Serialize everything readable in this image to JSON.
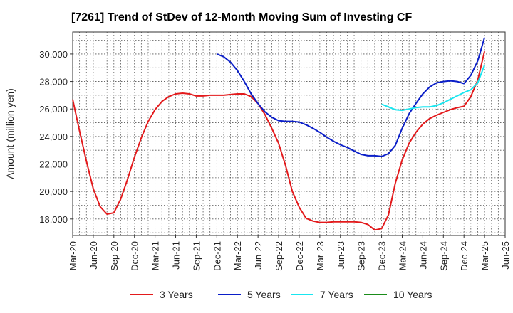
{
  "chart_data": {
    "type": "line",
    "title": "[7261]  Trend of StDev of 12-Month Moving Sum of Investing CF",
    "xlabel": "",
    "ylabel": "Amount (million yen)",
    "x_ticks": [
      "Mar-20",
      "Jun-20",
      "Sep-20",
      "Dec-20",
      "Mar-21",
      "Jun-21",
      "Sep-21",
      "Dec-21",
      "Mar-22",
      "Jun-22",
      "Sep-22",
      "Dec-22",
      "Mar-23",
      "Jun-23",
      "Sep-23",
      "Dec-23",
      "Mar-24",
      "Jun-24",
      "Sep-24",
      "Dec-24",
      "Mar-25",
      "Jun-25"
    ],
    "y_ticks": [
      18000,
      20000,
      22000,
      24000,
      26000,
      28000,
      30000
    ],
    "y_tick_labels": [
      "18,000",
      "20,000",
      "22,000",
      "24,000",
      "26,000",
      "28,000",
      "30,000"
    ],
    "ylim": [
      16800,
      31600
    ],
    "xlim_months": [
      0,
      63
    ],
    "grid": true,
    "legend_position": "bottom",
    "series": [
      {
        "name": "3 Years",
        "color": "#e31a1c",
        "x": [
          0,
          1,
          2,
          3,
          4,
          5,
          6,
          7,
          8,
          9,
          10,
          11,
          12,
          13,
          14,
          15,
          16,
          17,
          18,
          19,
          20,
          21,
          22,
          23,
          24,
          25,
          26,
          27,
          28,
          29,
          30,
          31,
          32,
          33,
          34,
          35,
          36,
          37,
          38,
          39,
          40,
          41,
          42,
          43,
          44,
          45,
          46,
          47,
          48,
          49,
          50,
          51,
          52,
          53,
          54,
          55,
          56,
          57,
          58,
          59,
          60
        ],
        "values": [
          26700,
          24400,
          22200,
          20200,
          18900,
          18350,
          18450,
          19450,
          20900,
          22500,
          23900,
          25100,
          25950,
          26550,
          26900,
          27100,
          27150,
          27100,
          26950,
          26950,
          27000,
          27000,
          27000,
          27050,
          27100,
          27100,
          26900,
          26400,
          25600,
          24600,
          23500,
          21900,
          20000,
          18850,
          18050,
          17850,
          17750,
          17750,
          17800,
          17800,
          17800,
          17800,
          17750,
          17600,
          17200,
          17300,
          18300,
          20600,
          22300,
          23500,
          24300,
          24900,
          25300,
          25550,
          25750,
          25950,
          26100,
          26200,
          26900,
          28100,
          30200
        ]
      },
      {
        "name": "5 Years",
        "color": "#0a1ec8",
        "x": [
          21,
          22,
          23,
          24,
          25,
          26,
          27,
          28,
          29,
          30,
          31,
          32,
          33,
          34,
          35,
          36,
          37,
          38,
          39,
          40,
          41,
          42,
          43,
          44,
          45,
          46,
          47,
          48,
          49,
          50,
          51,
          52,
          53,
          54,
          55,
          56,
          57,
          58,
          59,
          60
        ],
        "values": [
          30000,
          29800,
          29400,
          28800,
          28000,
          27100,
          26400,
          25800,
          25400,
          25150,
          25100,
          25100,
          25050,
          24850,
          24600,
          24300,
          23950,
          23650,
          23400,
          23200,
          22950,
          22700,
          22600,
          22600,
          22550,
          22750,
          23350,
          24600,
          25650,
          26400,
          27100,
          27600,
          27900,
          28000,
          28050,
          28000,
          27850,
          28450,
          29500,
          31200
        ]
      },
      {
        "name": "7 Years",
        "color": "#19e6f0",
        "x": [
          45,
          46,
          47,
          48,
          49,
          50,
          51,
          52,
          53,
          54,
          55,
          56,
          57,
          58,
          59,
          60
        ],
        "values": [
          26350,
          26150,
          25950,
          25900,
          26000,
          26100,
          26150,
          26150,
          26250,
          26450,
          26700,
          26950,
          27200,
          27400,
          27900,
          29200
        ]
      },
      {
        "name": "10 Years",
        "color": "#1a8c1a",
        "x": [],
        "values": []
      }
    ]
  }
}
